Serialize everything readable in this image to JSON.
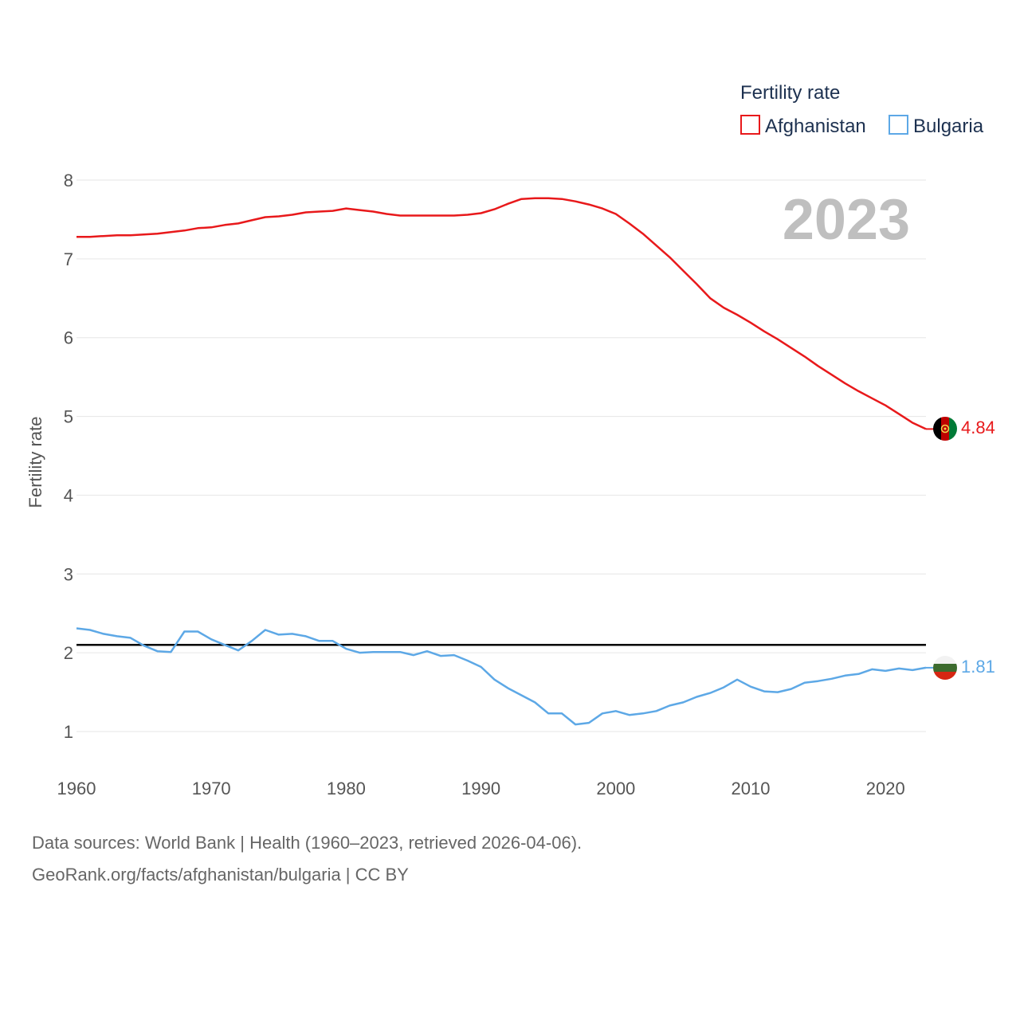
{
  "chart_data": {
    "type": "line",
    "ylabel": "Fertility rate",
    "xlabel": "",
    "xlim": [
      1960,
      2023
    ],
    "ylim": [
      0.6,
      8.4
    ],
    "x_ticks": [
      1960,
      1970,
      1980,
      1990,
      2000,
      2010,
      2020
    ],
    "y_ticks": [
      1,
      2,
      3,
      4,
      5,
      6,
      7,
      8
    ],
    "year_label": "2023",
    "legend_title": "Fertility rate",
    "reference_line": {
      "y": 2.1,
      "color": "#000000"
    },
    "x": [
      1960,
      1961,
      1962,
      1963,
      1964,
      1965,
      1966,
      1967,
      1968,
      1969,
      1970,
      1971,
      1972,
      1973,
      1974,
      1975,
      1976,
      1977,
      1978,
      1979,
      1980,
      1981,
      1982,
      1983,
      1984,
      1985,
      1986,
      1987,
      1988,
      1989,
      1990,
      1991,
      1992,
      1993,
      1994,
      1995,
      1996,
      1997,
      1998,
      1999,
      2000,
      2001,
      2002,
      2003,
      2004,
      2005,
      2006,
      2007,
      2008,
      2009,
      2010,
      2011,
      2012,
      2013,
      2014,
      2015,
      2016,
      2017,
      2018,
      2019,
      2020,
      2021,
      2022,
      2023
    ],
    "series": [
      {
        "name": "Afghanistan",
        "color": "#e8191b",
        "end_label": "4.84",
        "values": [
          7.28,
          7.28,
          7.29,
          7.3,
          7.3,
          7.31,
          7.32,
          7.34,
          7.36,
          7.39,
          7.4,
          7.43,
          7.45,
          7.49,
          7.53,
          7.54,
          7.56,
          7.59,
          7.6,
          7.61,
          7.64,
          7.62,
          7.6,
          7.57,
          7.55,
          7.55,
          7.55,
          7.55,
          7.55,
          7.56,
          7.58,
          7.63,
          7.7,
          7.76,
          7.77,
          7.77,
          7.76,
          7.73,
          7.69,
          7.64,
          7.57,
          7.45,
          7.32,
          7.17,
          7.02,
          6.85,
          6.68,
          6.5,
          6.38,
          6.29,
          6.19,
          6.08,
          5.98,
          5.87,
          5.76,
          5.64,
          5.53,
          5.42,
          5.32,
          5.23,
          5.14,
          5.03,
          4.92,
          4.84
        ]
      },
      {
        "name": "Bulgaria",
        "color": "#5da8e6",
        "end_label": "1.81",
        "values": [
          2.31,
          2.29,
          2.24,
          2.21,
          2.19,
          2.09,
          2.02,
          2.01,
          2.27,
          2.27,
          2.17,
          2.1,
          2.03,
          2.15,
          2.29,
          2.23,
          2.24,
          2.21,
          2.15,
          2.15,
          2.05,
          2.0,
          2.01,
          2.01,
          2.01,
          1.97,
          2.02,
          1.96,
          1.97,
          1.9,
          1.82,
          1.66,
          1.55,
          1.46,
          1.37,
          1.23,
          1.23,
          1.09,
          1.11,
          1.23,
          1.26,
          1.21,
          1.23,
          1.26,
          1.33,
          1.37,
          1.44,
          1.49,
          1.56,
          1.66,
          1.57,
          1.51,
          1.5,
          1.54,
          1.62,
          1.64,
          1.67,
          1.71,
          1.73,
          1.79,
          1.77,
          1.8,
          1.78,
          1.81
        ]
      }
    ]
  },
  "footer": {
    "line1": "Data sources: World Bank | Health (1960–2023, retrieved 2026-04-06).",
    "line2": "GeoRank.org/facts/afghanistan/bulgaria | CC BY"
  }
}
